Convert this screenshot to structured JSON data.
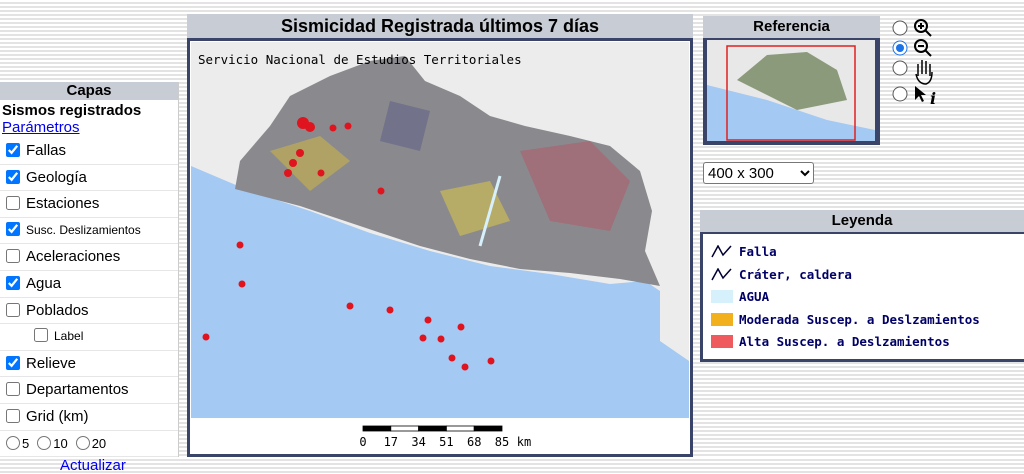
{
  "layers_panel": {
    "title": "Capas",
    "section": "Sismos registrados",
    "params_link": "Parámetros",
    "layers": [
      {
        "label": "Fallas",
        "checked": true
      },
      {
        "label": "Geología",
        "checked": true
      },
      {
        "label": "Estaciones",
        "checked": false
      },
      {
        "label": "Susc. Deslizamientos",
        "checked": true
      },
      {
        "label": "Aceleraciones",
        "checked": false
      },
      {
        "label": "Agua",
        "checked": true
      },
      {
        "label": "Poblados",
        "checked": false
      },
      {
        "label": "Label",
        "checked": false
      },
      {
        "label": "Relieve",
        "checked": true
      },
      {
        "label": "Departamentos",
        "checked": false
      },
      {
        "label": "Grid (km)",
        "checked": false
      }
    ],
    "grid_options": [
      "5",
      "10",
      "20"
    ],
    "update": "Actualizar"
  },
  "map": {
    "title": "Sismicidad Registrada últimos 7 días",
    "credit": "Servicio Nacional de Estudios Territoriales",
    "scale_labels": [
      "0",
      "17",
      "34",
      "51",
      "68",
      "85"
    ],
    "scale_unit": "km"
  },
  "reference": {
    "title": "Referencia"
  },
  "size_select": "400 x 300",
  "legend": {
    "title": "Leyenda",
    "items": [
      {
        "label": "Falla",
        "swatch": "line",
        "color": "#000033"
      },
      {
        "label": "Cráter, caldera",
        "swatch": "line",
        "color": "#000033"
      },
      {
        "label": "AGUA",
        "swatch": "box",
        "color": "#d6f1fb"
      },
      {
        "label": "Moderada Suscep. a Deslzamientos",
        "swatch": "box",
        "color": "#f2b01c"
      },
      {
        "label": "Alta Suscep. a Deslzamientos",
        "swatch": "box",
        "color": "#ef5a5e"
      }
    ]
  }
}
